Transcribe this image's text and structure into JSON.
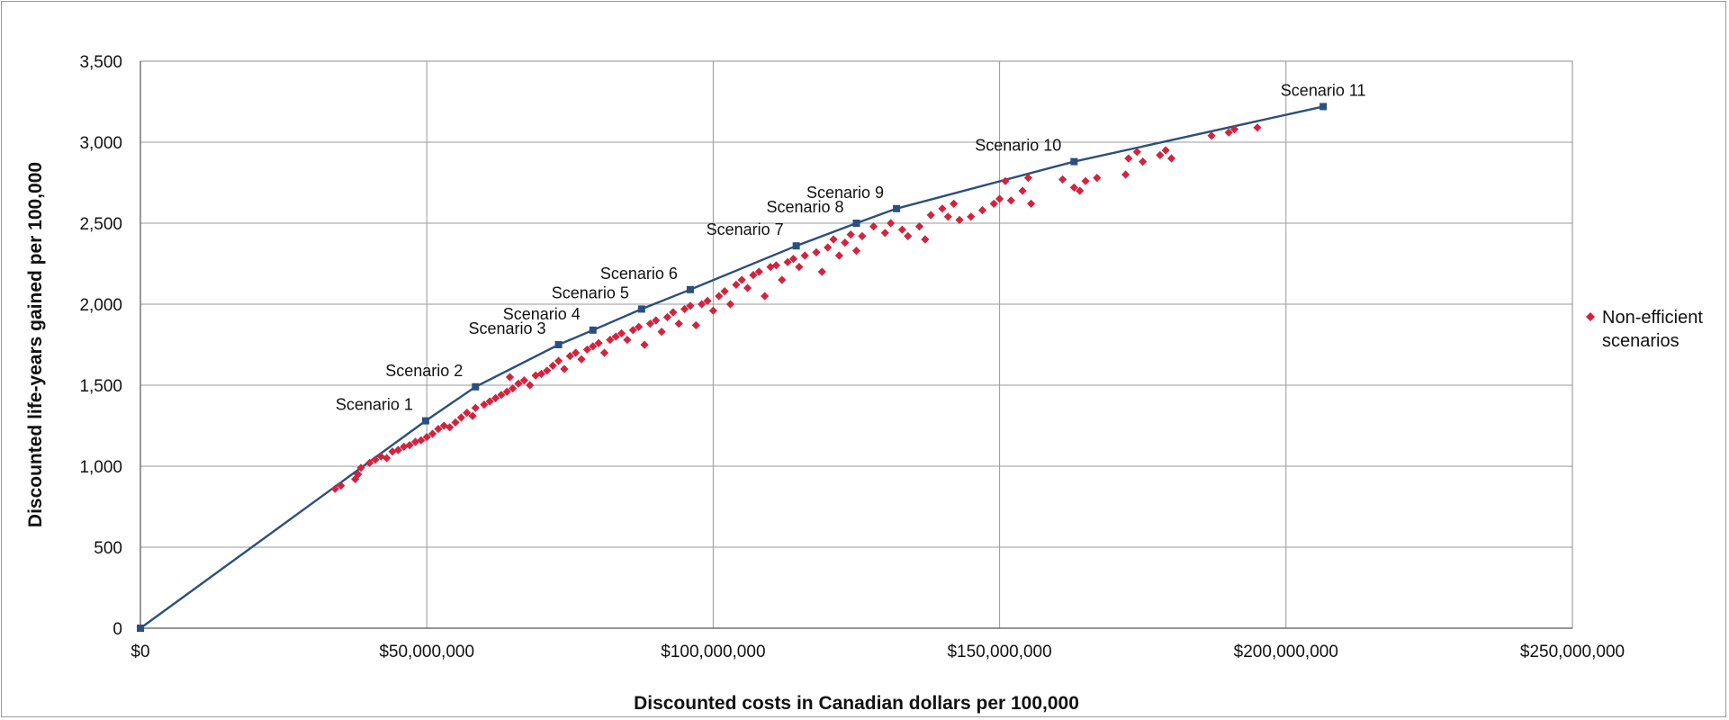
{
  "chart_data": {
    "type": "scatter",
    "xlabel": "Discounted costs in Canadian dollars per 100,000",
    "ylabel": "Discounted life-years gained per 100,000",
    "xlim": [
      0,
      250000000
    ],
    "ylim": [
      0,
      3500
    ],
    "x_ticks": [
      0,
      50000000,
      100000000,
      150000000,
      200000000,
      250000000
    ],
    "x_tick_labels": [
      "$0",
      "$50,000,000",
      "$100,000,000",
      "$150,000,000",
      "$200,000,000",
      "$250,000,000"
    ],
    "y_ticks": [
      0,
      500,
      1000,
      1500,
      2000,
      2500,
      3000,
      3500
    ],
    "y_tick_labels": [
      "0",
      "500",
      "1,000",
      "1,500",
      "2,000",
      "2,500",
      "3,000",
      "3,500"
    ],
    "grid": true,
    "legend_position": "right",
    "series": [
      {
        "name": "Non-efficient scenarios",
        "kind": "scatter",
        "color": "#d2233f",
        "marker": "diamond",
        "points": [
          [
            34000000,
            860
          ],
          [
            35000000,
            880
          ],
          [
            37500000,
            920
          ],
          [
            38000000,
            950
          ],
          [
            38500000,
            990
          ],
          [
            40000000,
            1020
          ],
          [
            41000000,
            1040
          ],
          [
            42000000,
            1060
          ],
          [
            43000000,
            1050
          ],
          [
            44000000,
            1090
          ],
          [
            45000000,
            1100
          ],
          [
            46000000,
            1120
          ],
          [
            47000000,
            1130
          ],
          [
            48000000,
            1150
          ],
          [
            49000000,
            1160
          ],
          [
            50000000,
            1180
          ],
          [
            51000000,
            1200
          ],
          [
            52000000,
            1230
          ],
          [
            53000000,
            1250
          ],
          [
            54000000,
            1240
          ],
          [
            55000000,
            1270
          ],
          [
            56000000,
            1300
          ],
          [
            57000000,
            1330
          ],
          [
            58000000,
            1310
          ],
          [
            58500000,
            1360
          ],
          [
            60000000,
            1380
          ],
          [
            61000000,
            1400
          ],
          [
            62000000,
            1420
          ],
          [
            63000000,
            1440
          ],
          [
            64000000,
            1460
          ],
          [
            64500000,
            1550
          ],
          [
            65000000,
            1480
          ],
          [
            66000000,
            1510
          ],
          [
            67000000,
            1530
          ],
          [
            68000000,
            1500
          ],
          [
            69000000,
            1560
          ],
          [
            70000000,
            1570
          ],
          [
            71000000,
            1590
          ],
          [
            72000000,
            1620
          ],
          [
            73000000,
            1650
          ],
          [
            74000000,
            1600
          ],
          [
            75000000,
            1680
          ],
          [
            76000000,
            1700
          ],
          [
            77000000,
            1660
          ],
          [
            78000000,
            1720
          ],
          [
            79000000,
            1740
          ],
          [
            80000000,
            1760
          ],
          [
            81000000,
            1700
          ],
          [
            82000000,
            1780
          ],
          [
            83000000,
            1800
          ],
          [
            84000000,
            1820
          ],
          [
            85000000,
            1780
          ],
          [
            86000000,
            1840
          ],
          [
            87000000,
            1860
          ],
          [
            88000000,
            1750
          ],
          [
            89000000,
            1880
          ],
          [
            90000000,
            1900
          ],
          [
            91000000,
            1830
          ],
          [
            92000000,
            1920
          ],
          [
            93000000,
            1950
          ],
          [
            94000000,
            1880
          ],
          [
            95000000,
            1970
          ],
          [
            96000000,
            1990
          ],
          [
            97000000,
            1870
          ],
          [
            98000000,
            2000
          ],
          [
            99000000,
            2020
          ],
          [
            100000000,
            1960
          ],
          [
            101000000,
            2050
          ],
          [
            102000000,
            2080
          ],
          [
            103000000,
            2000
          ],
          [
            104000000,
            2120
          ],
          [
            105000000,
            2150
          ],
          [
            106000000,
            2100
          ],
          [
            107000000,
            2180
          ],
          [
            108000000,
            2200
          ],
          [
            109000000,
            2050
          ],
          [
            110000000,
            2230
          ],
          [
            111000000,
            2240
          ],
          [
            112000000,
            2150
          ],
          [
            113000000,
            2260
          ],
          [
            114000000,
            2280
          ],
          [
            115000000,
            2230
          ],
          [
            116000000,
            2300
          ],
          [
            118000000,
            2320
          ],
          [
            119000000,
            2200
          ],
          [
            120000000,
            2350
          ],
          [
            121000000,
            2400
          ],
          [
            122000000,
            2300
          ],
          [
            123000000,
            2380
          ],
          [
            124000000,
            2430
          ],
          [
            125000000,
            2330
          ],
          [
            126000000,
            2420
          ],
          [
            128000000,
            2480
          ],
          [
            130000000,
            2440
          ],
          [
            131000000,
            2500
          ],
          [
            133000000,
            2460
          ],
          [
            134000000,
            2420
          ],
          [
            136000000,
            2480
          ],
          [
            137000000,
            2400
          ],
          [
            138000000,
            2550
          ],
          [
            140000000,
            2590
          ],
          [
            141000000,
            2540
          ],
          [
            142000000,
            2620
          ],
          [
            143000000,
            2520
          ],
          [
            145000000,
            2540
          ],
          [
            147000000,
            2580
          ],
          [
            149000000,
            2620
          ],
          [
            150000000,
            2650
          ],
          [
            151000000,
            2760
          ],
          [
            152000000,
            2640
          ],
          [
            154000000,
            2700
          ],
          [
            155000000,
            2780
          ],
          [
            155500000,
            2620
          ],
          [
            161000000,
            2770
          ],
          [
            163000000,
            2720
          ],
          [
            164000000,
            2700
          ],
          [
            165000000,
            2760
          ],
          [
            167000000,
            2780
          ],
          [
            172000000,
            2800
          ],
          [
            172500000,
            2900
          ],
          [
            174000000,
            2940
          ],
          [
            175000000,
            2880
          ],
          [
            178000000,
            2920
          ],
          [
            179000000,
            2950
          ],
          [
            180000000,
            2900
          ],
          [
            187000000,
            3040
          ],
          [
            190000000,
            3060
          ],
          [
            191000000,
            3080
          ],
          [
            195000000,
            3090
          ]
        ]
      },
      {
        "name": "",
        "kind": "line",
        "color": "#2b4f7e",
        "marker": "square",
        "points": [
          [
            0,
            0
          ],
          [
            49800000,
            1280
          ],
          [
            58500000,
            1490
          ],
          [
            73000000,
            1750
          ],
          [
            79000000,
            1840
          ],
          [
            87500000,
            1970
          ],
          [
            96000000,
            2090
          ],
          [
            114500000,
            2360
          ],
          [
            125000000,
            2500
          ],
          [
            132000000,
            2590
          ],
          [
            163000000,
            2880
          ],
          [
            206500000,
            3220
          ]
        ]
      }
    ],
    "point_labels": [
      {
        "text": "Scenario 1",
        "x": 49800000,
        "y": 1280
      },
      {
        "text": "Scenario 2",
        "x": 58500000,
        "y": 1490
      },
      {
        "text": "Scenario 3",
        "x": 73000000,
        "y": 1750
      },
      {
        "text": "Scenario 4",
        "x": 79000000,
        "y": 1840
      },
      {
        "text": "Scenario 5",
        "x": 87500000,
        "y": 1970
      },
      {
        "text": "Scenario 6",
        "x": 96000000,
        "y": 2090
      },
      {
        "text": "Scenario 7",
        "x": 114500000,
        "y": 2360
      },
      {
        "text": "Scenario 8",
        "x": 125000000,
        "y": 2500
      },
      {
        "text": "Scenario 9",
        "x": 132000000,
        "y": 2590
      },
      {
        "text": "Scenario 10",
        "x": 163000000,
        "y": 2880
      },
      {
        "text": "Scenario 11",
        "x": 206500000,
        "y": 3220
      }
    ],
    "legend": {
      "entries": [
        "Non-efficient scenarios"
      ]
    }
  }
}
